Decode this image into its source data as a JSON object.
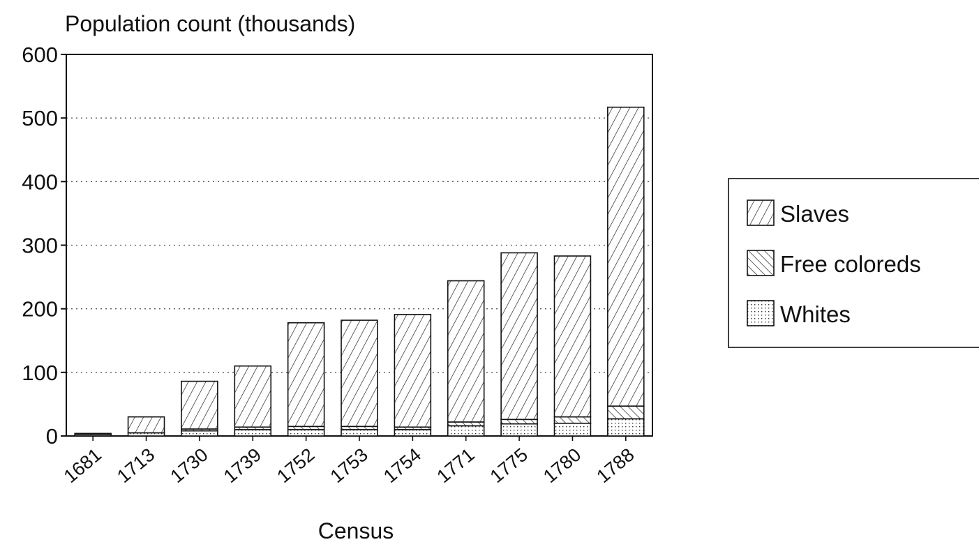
{
  "chart_data": {
    "type": "bar",
    "stacked": true,
    "title": "Population count (thousands)",
    "xlabel": "Census",
    "ylabel": "",
    "ylim": [
      0,
      600
    ],
    "yticks": [
      0,
      100,
      200,
      300,
      400,
      500,
      600
    ],
    "grid": true,
    "categories": [
      "1681",
      "1713",
      "1730",
      "1739",
      "1752",
      "1753",
      "1754",
      "1771",
      "1775",
      "1780",
      "1788"
    ],
    "series": [
      {
        "name": "Whites",
        "pattern": "dots",
        "values": [
          2,
          5,
          8,
          10,
          10,
          10,
          10,
          16,
          19,
          20,
          27
        ]
      },
      {
        "name": "Free coloreds",
        "pattern": "backhatch",
        "values": [
          0,
          0,
          3,
          4,
          5,
          5,
          4,
          6,
          7,
          10,
          20
        ]
      },
      {
        "name": "Slaves",
        "pattern": "hatch",
        "values": [
          2,
          25,
          75,
          96,
          163,
          167,
          177,
          222,
          262,
          253,
          470
        ]
      }
    ],
    "legend": {
      "position": "right",
      "entries": [
        "Slaves",
        "Free coloreds",
        "Whites"
      ]
    }
  }
}
